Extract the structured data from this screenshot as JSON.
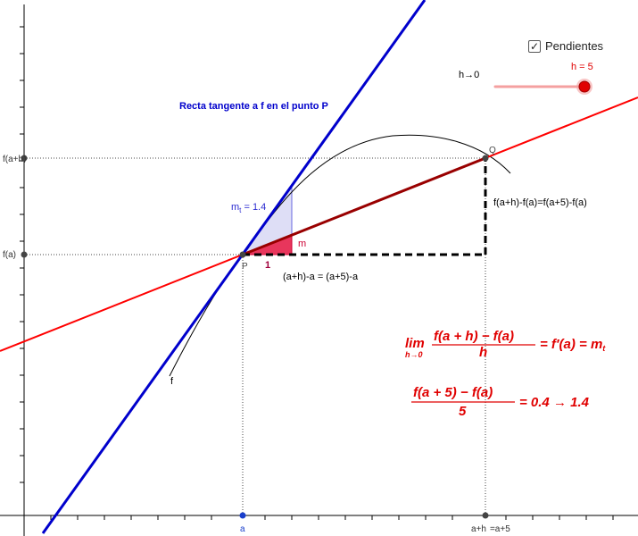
{
  "controls": {
    "checkbox_label": "Pendientes",
    "checkbox_checked": true,
    "checkmark_glyph": "✓",
    "h_limit_label": "h→0",
    "slider_label": "h = 5",
    "slider_value": 5
  },
  "labels": {
    "tangent_title": "Recta tangente a f en el punto P",
    "mt_label_main": "m",
    "mt_label_sub": "t",
    "mt_label_rest": " = 1.4",
    "m_label": "m",
    "one_label": "1",
    "point_p": "P",
    "point_q": "Q",
    "curve_f": "f",
    "vertical_diff": "f(a+h)-f(a)=f(a+5)-f(a)",
    "horizontal_diff": "(a+h)-a = (a+5)-a",
    "y_tick_fah": "f(a+h)",
    "y_tick_fa": "f(a)",
    "x_tick_a": "a",
    "x_tick_ah": "a+h",
    "x_tick_ah_eq": "=a+5"
  },
  "formula1": {
    "lim": "lim",
    "lim_sub": "h→0",
    "numerator": "f(a + h) − f(a)",
    "denominator": "h",
    "rhs": "= f′(a) = m",
    "rhs_sub": "t"
  },
  "formula2": {
    "numerator": "f(a + 5) − f(a)",
    "denominator": "5",
    "rhs": "= 0.4 → 1.4"
  },
  "colors": {
    "tangent": "#0000cc",
    "secant": "#ff0000",
    "secant_dark": "#990000",
    "triangle_fill": "#e8365c",
    "triangle_tangent_fill": "#c8c8f0",
    "formula": "#e00000",
    "slider_track": "#f4a0a0",
    "slider_knob": "#e00000",
    "axis": "#000000",
    "dotted": "#333333"
  }
}
